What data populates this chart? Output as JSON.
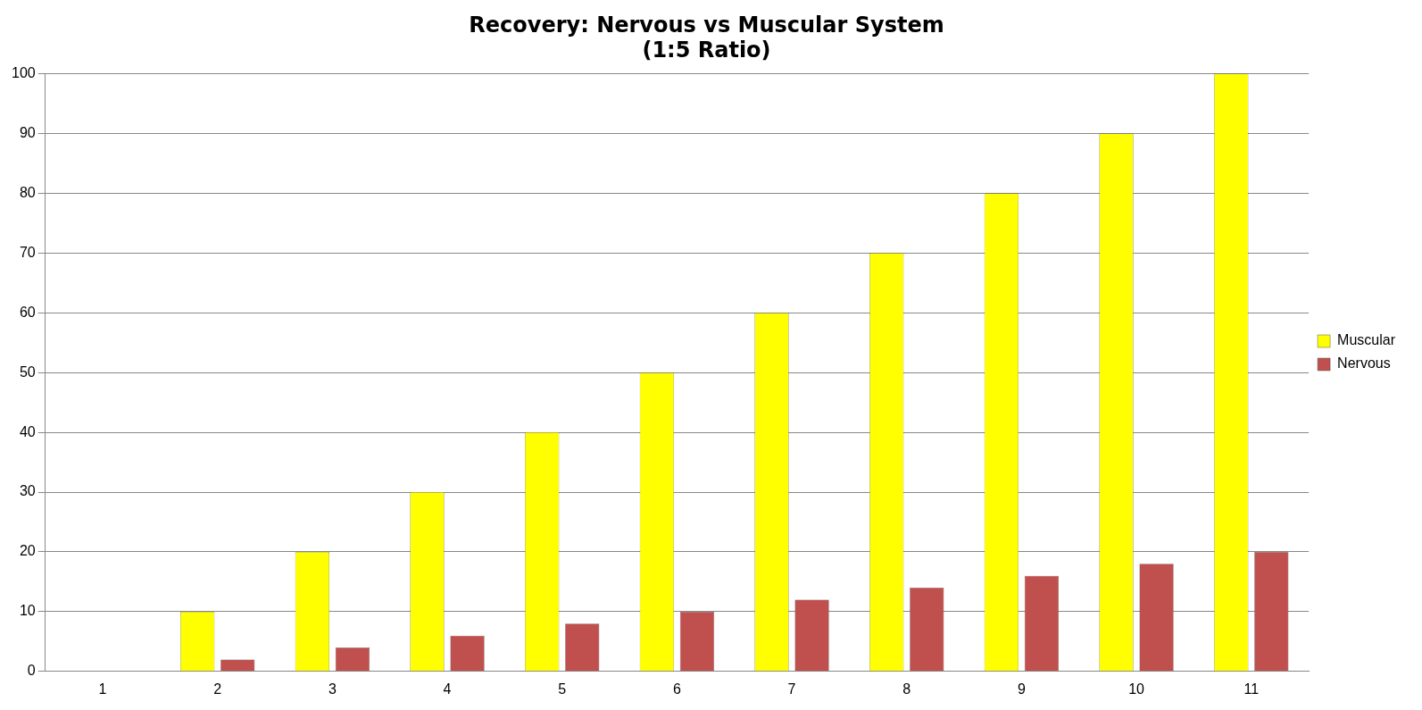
{
  "chart_data": {
    "type": "bar",
    "title": "Recovery: Nervous vs Muscular System\n(1:5 Ratio)",
    "categories": [
      "1",
      "2",
      "3",
      "4",
      "5",
      "6",
      "7",
      "8",
      "9",
      "10",
      "11"
    ],
    "series": [
      {
        "name": "Muscular",
        "color": "#ffff00",
        "values": [
          0,
          10,
          20,
          30,
          40,
          50,
          60,
          70,
          80,
          90,
          100
        ]
      },
      {
        "name": "Nervous",
        "color": "#c0504d",
        "values": [
          0,
          2,
          4,
          6,
          8,
          10,
          12,
          14,
          16,
          18,
          20
        ]
      }
    ],
    "ylim": [
      0,
      100
    ],
    "yticks": [
      0,
      10,
      20,
      30,
      40,
      50,
      60,
      70,
      80,
      90,
      100
    ],
    "grid": "y",
    "legend": "right"
  }
}
